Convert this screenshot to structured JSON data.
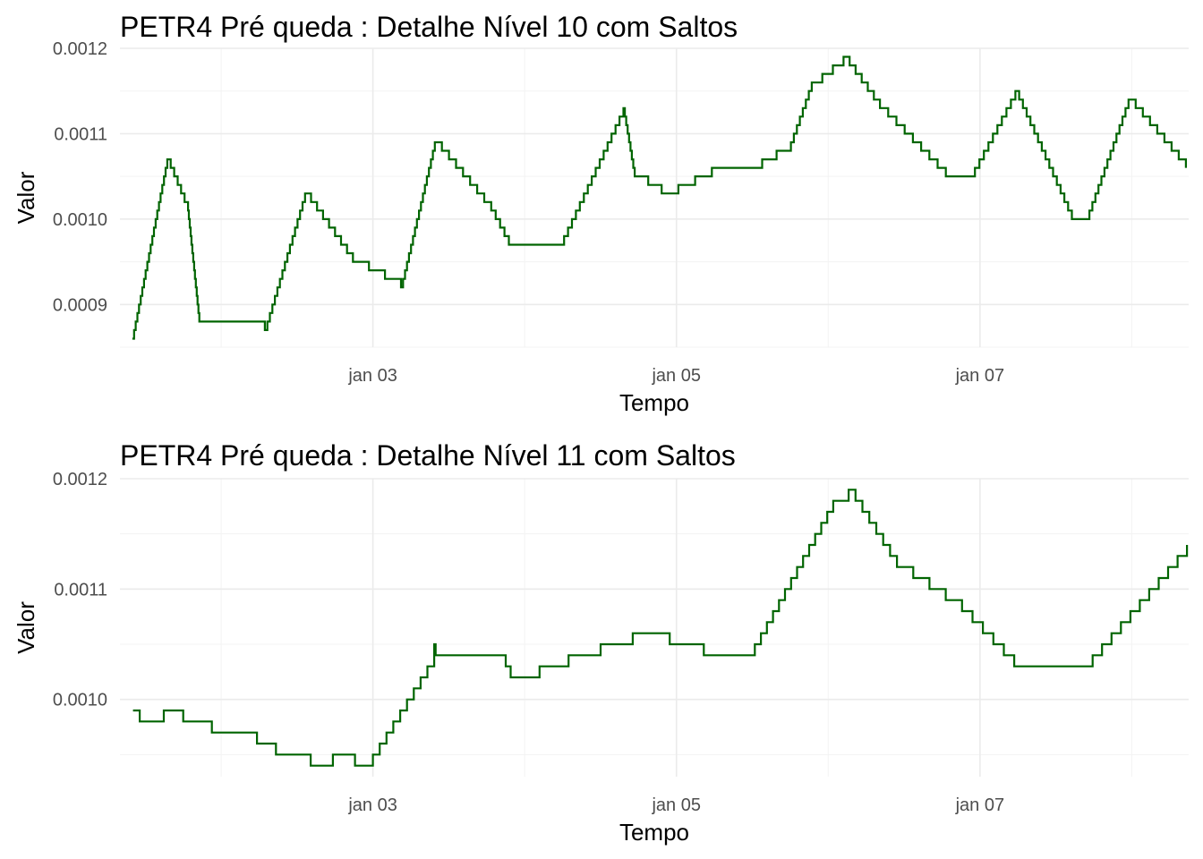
{
  "colors": {
    "line": "#006400",
    "grid_major": "#ebebeb",
    "grid_minor": "#f3f3f3",
    "tick_text": "#4d4d4d"
  },
  "chart_data": [
    {
      "type": "line",
      "title": "PETR4 Pré queda : Detalhe Nível 10 com Saltos",
      "xlabel": "Tempo",
      "ylabel": "Valor",
      "xlim": [
        "2024-01-01T08:00",
        "2024-01-08T09:00"
      ],
      "ylim": [
        0.00085,
        0.0012
      ],
      "x_major_ticks": [
        {
          "x": "2024-01-03T00:00",
          "label": "jan 03"
        },
        {
          "x": "2024-01-05T00:00",
          "label": "jan 05"
        },
        {
          "x": "2024-01-07T00:00",
          "label": "jan 07"
        }
      ],
      "x_minor_ticks": [
        "2024-01-02T00:00",
        "2024-01-04T00:00",
        "2024-01-06T00:00",
        "2024-01-08T00:00"
      ],
      "y_major_ticks": [
        {
          "y": 0.0009,
          "label": "0.0009"
        },
        {
          "y": 0.001,
          "label": "0.0010"
        },
        {
          "y": 0.0011,
          "label": "0.0011"
        },
        {
          "y": 0.0012,
          "label": "0.0012"
        }
      ],
      "y_minor_ticks": [
        0.00085,
        0.00095,
        0.00105,
        0.00115
      ],
      "grid": true,
      "step": true,
      "series": [
        {
          "x": [
            "2024-01-01T09:58",
            "2024-01-01T15:29",
            "2024-01-01T18:46",
            "2024-01-01T20:33",
            "2024-01-02T06:55",
            "2024-01-02T13:16",
            "2024-01-02T20:51",
            "2024-01-03T04:27",
            "2024-01-03T09:48",
            "2024-01-03T18:43",
            "2024-01-03T21:30",
            "2024-01-04T05:36",
            "2024-01-04T15:37",
            "2024-01-04T17:24",
            "2024-01-04T21:40",
            "2024-01-05T05:36",
            "2024-01-05T11:17",
            "2024-01-05T18:06",
            "2024-01-05T21:24",
            "2024-01-06T02:25",
            "2024-01-06T08:11",
            "2024-01-06T18:36",
            "2024-01-06T23:12",
            "2024-01-07T05:36",
            "2024-01-07T14:32",
            "2024-01-07T17:18",
            "2024-01-07T23:29",
            "2024-01-08T08:34"
          ],
          "y": [
            0.00086,
            0.00107,
            0.00101,
            0.00088,
            0.00087,
            0.00103,
            0.00095,
            0.00092,
            0.00109,
            0.00101,
            0.00097,
            0.00097,
            0.00113,
            0.00105,
            0.00103,
            0.00106,
            0.00106,
            0.00109,
            0.00116,
            0.00119,
            0.00113,
            0.00105,
            0.00106,
            0.00115,
            0.001,
            0.00101,
            0.00114,
            0.00106
          ]
        }
      ]
    },
    {
      "type": "line",
      "title": "PETR4 Pré queda : Detalhe Nível 11 com Saltos",
      "xlabel": "Tempo",
      "ylabel": "Valor",
      "xlim": [
        "2024-01-01T08:00",
        "2024-01-08T09:00"
      ],
      "ylim": [
        0.00093,
        0.0012
      ],
      "x_major_ticks": [
        {
          "x": "2024-01-03T00:00",
          "label": "jan 03"
        },
        {
          "x": "2024-01-05T00:00",
          "label": "jan 05"
        },
        {
          "x": "2024-01-07T00:00",
          "label": "jan 07"
        }
      ],
      "x_minor_ticks": [
        "2024-01-02T00:00",
        "2024-01-04T00:00",
        "2024-01-06T00:00",
        "2024-01-08T00:00"
      ],
      "y_major_ticks": [
        {
          "y": 0.001,
          "label": "0.0010"
        },
        {
          "y": 0.0011,
          "label": "0.0011"
        },
        {
          "y": 0.0012,
          "label": "0.0012"
        }
      ],
      "y_minor_ticks": [
        0.00095,
        0.00105,
        0.00115
      ],
      "grid": true,
      "step": true,
      "series": [
        {
          "x": [
            "2024-01-01T10:04",
            "2024-01-01T11:08",
            "2024-01-01T14:56",
            "2024-01-01T18:00",
            "2024-01-01T22:32",
            "2024-01-02T05:40",
            "2024-01-02T08:40",
            "2024-01-02T14:10",
            "2024-01-02T17:40",
            "2024-01-02T21:10",
            "2024-01-03T00:00",
            "2024-01-03T09:42",
            "2024-01-03T09:42",
            "2024-01-03T09:55",
            "2024-01-03T21:00",
            "2024-01-03T21:47",
            "2024-01-04T06:56",
            "2024-01-04T17:05",
            "2024-01-04T22:56",
            "2024-01-05T02:46",
            "2024-01-05T04:20",
            "2024-01-05T12:24",
            "2024-01-06T00:48",
            "2024-01-06T03:14",
            "2024-01-06T10:52",
            "2024-01-06T21:10",
            "2024-01-07T05:25",
            "2024-01-07T16:19",
            "2024-01-08T08:44"
          ],
          "y": [
            0.00099,
            0.00098,
            0.00099,
            0.00098,
            0.00097,
            0.00096,
            0.00095,
            0.00094,
            0.00095,
            0.00094,
            0.00095,
            0.00104,
            0.00105,
            0.00104,
            0.00103,
            0.00102,
            0.00104,
            0.00106,
            0.00105,
            0.00105,
            0.00104,
            0.00105,
            0.00118,
            0.00119,
            0.00112,
            0.00108,
            0.00103,
            0.00103,
            0.00114
          ]
        }
      ]
    }
  ]
}
